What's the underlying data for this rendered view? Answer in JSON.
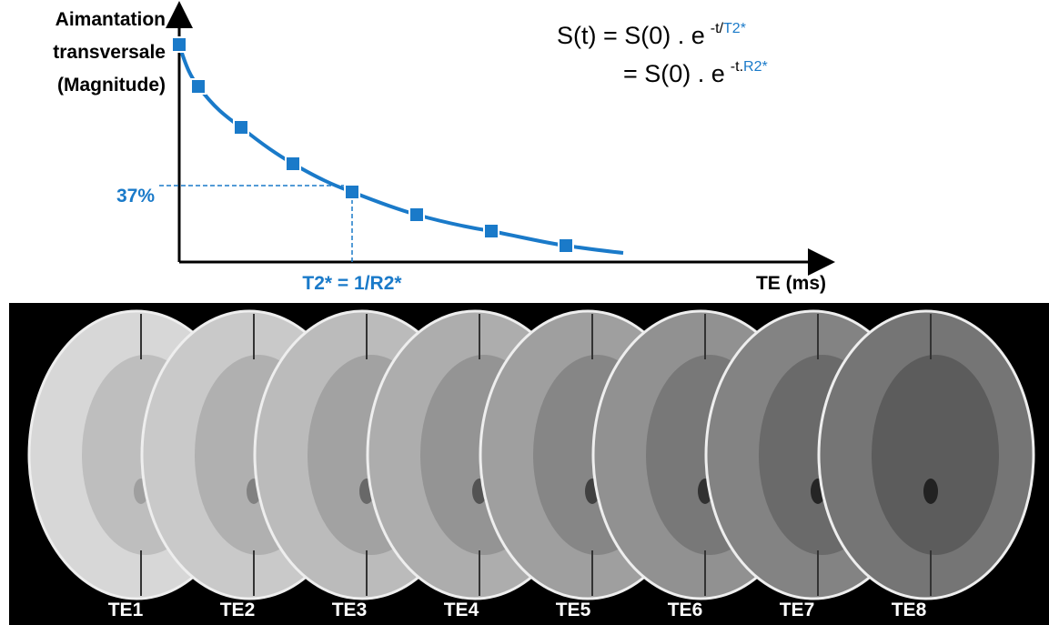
{
  "graph": {
    "y_label": [
      "Aimantation",
      "transversale",
      "(Magnitude)"
    ],
    "x_label": "TE (ms)",
    "level_label": "37%",
    "time_label": "T2* = 1/R2*"
  },
  "formula": {
    "line1": {
      "base": "S(t) = S(0) . e",
      "exp": "-t/",
      "param": "T2*"
    },
    "line2": {
      "base": "= S(0) . e",
      "exp": "-t.",
      "param": "R2*"
    }
  },
  "images": {
    "labels": [
      "TE1",
      "TE2",
      "TE3",
      "TE4",
      "TE5",
      "TE6",
      "TE7",
      "TE8"
    ]
  }
}
